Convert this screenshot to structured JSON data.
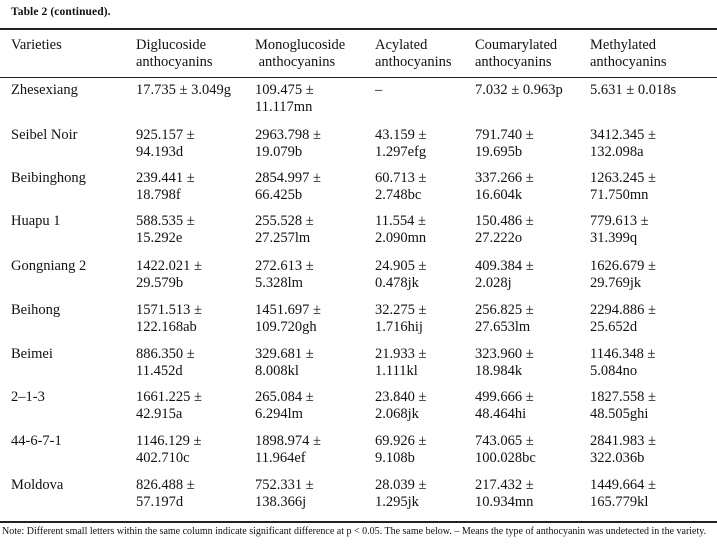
{
  "caption": "Table 2  (continued).",
  "columns": [
    [
      "Varieties"
    ],
    [
      "Diglucoside",
      "anthocyanins"
    ],
    [
      "Monoglucoside",
      " anthocyanins"
    ],
    [
      "Acylated",
      "anthocyanins"
    ],
    [
      "Coumarylated",
      "anthocyanins"
    ],
    [
      "Methylated",
      "anthocyanins"
    ]
  ],
  "rows": [
    {
      "variety": "Zhesexiang",
      "cells": [
        [
          "17.735 ± 3.049g"
        ],
        [
          "109.475 ±",
          "11.117mn"
        ],
        [
          "–"
        ],
        [
          "7.032 ± 0.963p"
        ],
        [
          "5.631 ± 0.018s"
        ]
      ]
    },
    {
      "variety": "Seibel Noir",
      "cells": [
        [
          "925.157 ±",
          "94.193d"
        ],
        [
          "2963.798 ±",
          "19.079b"
        ],
        [
          "43.159 ±",
          "1.297efg"
        ],
        [
          "791.740 ±",
          "19.695b"
        ],
        [
          "3412.345 ±",
          "132.098a"
        ]
      ]
    },
    {
      "variety": "Beibinghong",
      "cells": [
        [
          "239.441 ±",
          "18.798f"
        ],
        [
          "2854.997 ±",
          "66.425b"
        ],
        [
          "60.713 ±",
          "2.748bc"
        ],
        [
          "337.266 ±",
          "16.604k"
        ],
        [
          "1263.245 ±",
          "71.750mn"
        ]
      ]
    },
    {
      "variety": "Huapu 1",
      "cells": [
        [
          "588.535 ±",
          "15.292e"
        ],
        [
          "255.528 ±",
          "27.257lm"
        ],
        [
          "11.554 ±",
          "2.090mn"
        ],
        [
          "150.486 ±",
          "27.222o"
        ],
        [
          "779.613 ±",
          "31.399q"
        ]
      ]
    },
    {
      "variety": "Gongniang 2",
      "cells": [
        [
          "1422.021 ±",
          "29.579b"
        ],
        [
          "272.613 ±",
          "5.328lm"
        ],
        [
          "24.905 ±",
          "0.478jk"
        ],
        [
          "409.384 ±",
          "2.028j"
        ],
        [
          "1626.679 ±",
          "29.769jk"
        ]
      ]
    },
    {
      "variety": "Beihong",
      "cells": [
        [
          "1571.513 ±",
          "122.168ab"
        ],
        [
          "1451.697 ±",
          "109.720gh"
        ],
        [
          "32.275 ±",
          "1.716hij"
        ],
        [
          "256.825 ±",
          "27.653lm"
        ],
        [
          "2294.886 ±",
          "25.652d"
        ]
      ]
    },
    {
      "variety": "Beimei",
      "cells": [
        [
          "886.350 ±",
          "11.452d"
        ],
        [
          "329.681 ±",
          "8.008kl"
        ],
        [
          "21.933 ±",
          "1.111kl"
        ],
        [
          "323.960 ±",
          "18.984k"
        ],
        [
          "1146.348 ±",
          "5.084no"
        ]
      ]
    },
    {
      "variety": "2–1-3",
      "cells": [
        [
          "1661.225 ±",
          "42.915a"
        ],
        [
          "265.084 ±",
          "6.294lm"
        ],
        [
          "23.840 ±",
          "2.068jk"
        ],
        [
          "499.666 ±",
          "48.464hi"
        ],
        [
          "1827.558 ±",
          "48.505ghi"
        ]
      ]
    },
    {
      "variety": "44-6-7-1",
      "cells": [
        [
          "1146.129 ±",
          "402.710c"
        ],
        [
          "1898.974 ±",
          "11.964ef"
        ],
        [
          "69.926 ±",
          "9.108b"
        ],
        [
          "743.065 ±",
          "100.028bc"
        ],
        [
          "2841.983 ±",
          "322.036b"
        ]
      ]
    },
    {
      "variety": "Moldova",
      "cells": [
        [
          "826.488 ±",
          "57.197d"
        ],
        [
          "752.331 ±",
          "138.366j"
        ],
        [
          "28.039 ±",
          "1.295jk"
        ],
        [
          "217.432 ±",
          "10.934mn"
        ],
        [
          "1449.664 ±",
          "165.779kl"
        ]
      ]
    }
  ],
  "note": "Note: Different small letters within the same column indicate significant difference at p < 0.05. The same below. – Means the type of anthocyanin was undetected in the variety."
}
